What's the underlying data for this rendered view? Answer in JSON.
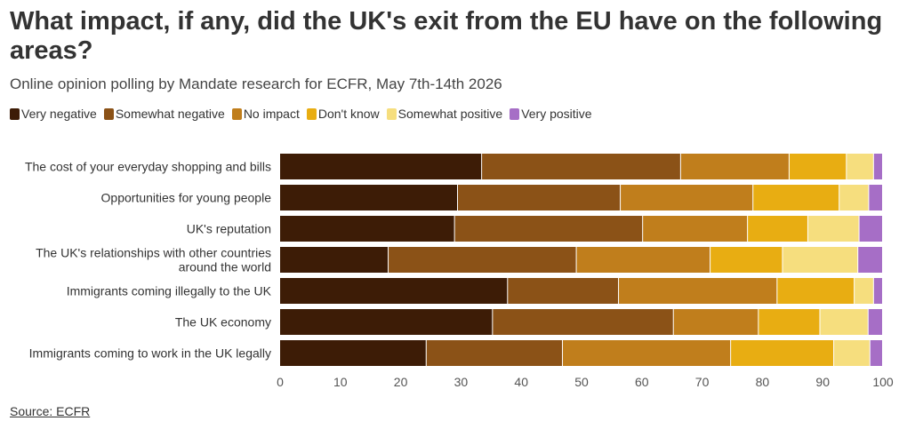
{
  "chart_data": {
    "type": "bar",
    "orientation": "horizontal",
    "stacked": true,
    "title": "What impact, if any, did the UK's exit from the EU have on the following areas?",
    "subtitle": "Online opinion polling by Mandate research for ECFR, May 7th-14th 2026",
    "categories": [
      "The cost of your everyday shopping and bills",
      "Opportunities for young people",
      "UK's reputation",
      "The UK's relationships with other countries around the world",
      "Immigrants coming illegally to the UK",
      "The UK economy",
      "Immigrants coming to work in the UK legally"
    ],
    "series": [
      {
        "name": "Very negative",
        "color": "#3d1c06",
        "values": [
          33.5,
          29.5,
          29,
          18,
          37.8,
          35.3,
          24.3
        ]
      },
      {
        "name": "Somewhat negative",
        "color": "#8b5217",
        "values": [
          33,
          27,
          31.2,
          31.2,
          18.4,
          30,
          22.6
        ]
      },
      {
        "name": "No impact",
        "color": "#c07e1c",
        "values": [
          18,
          22,
          17.4,
          22.2,
          26.3,
          14.1,
          27.9
        ]
      },
      {
        "name": "Don't know",
        "color": "#e8ad12",
        "values": [
          9.5,
          14.3,
          10,
          12,
          12.8,
          10.2,
          17.1
        ]
      },
      {
        "name": "Somewhat positive",
        "color": "#f6de7e",
        "values": [
          4.5,
          4.9,
          8.5,
          12.5,
          3.2,
          8,
          6
        ]
      },
      {
        "name": "Very positive",
        "color": "#a66ec6",
        "values": [
          1.5,
          2.3,
          3.9,
          4.1,
          1.5,
          2.4,
          2.1
        ]
      }
    ],
    "xlim": [
      0,
      100
    ],
    "xticks": [
      0,
      10,
      20,
      30,
      40,
      50,
      60,
      70,
      80,
      90,
      100
    ],
    "legend_position": "top-left",
    "grid": false
  },
  "footer": {
    "source_label": "Source: ECFR"
  }
}
